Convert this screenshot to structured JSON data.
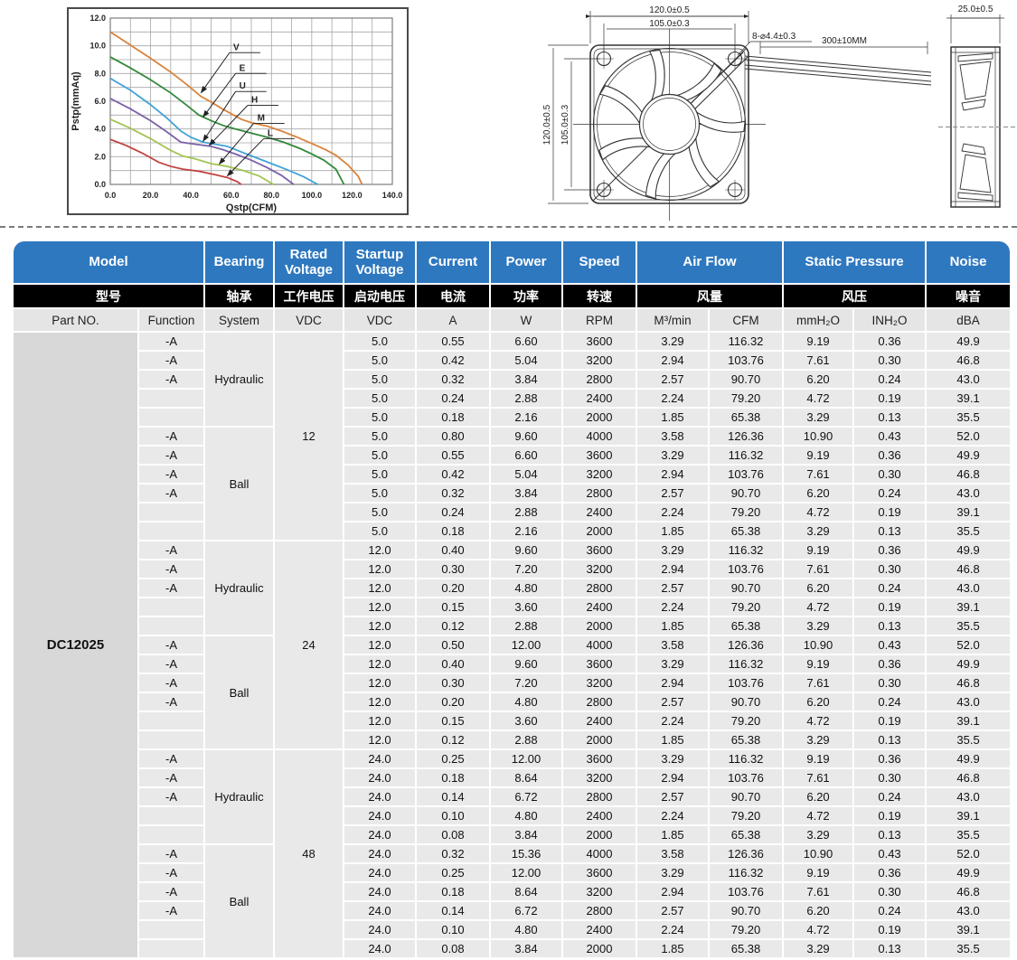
{
  "chart_data": {
    "type": "line",
    "xlabel": "Qstp(CFM)",
    "ylabel": "Pstp(mmAq)",
    "xlim": [
      0,
      140
    ],
    "ylim": [
      0,
      12
    ],
    "xticks": [
      "0.0",
      "20.0",
      "40.0",
      "60.0",
      "80.0",
      "100.0",
      "120.0",
      "140.0"
    ],
    "yticks": [
      "0.0",
      "2.0",
      "4.0",
      "6.0",
      "8.0",
      "10.0",
      "12.0"
    ],
    "grid": "on",
    "grid_minor_x": 10,
    "grid_minor_y": 1,
    "series": [
      {
        "name": "V",
        "color": "#d9823a",
        "label_at": [
          61,
          9.7
        ],
        "arrow_to": [
          45,
          6.6
        ],
        "points": [
          [
            0,
            11.0
          ],
          [
            10,
            10.05
          ],
          [
            20,
            9.1
          ],
          [
            30,
            8.1
          ],
          [
            38,
            7.2
          ],
          [
            45,
            6.35
          ],
          [
            50,
            5.95
          ],
          [
            55,
            5.5
          ],
          [
            60,
            5.1
          ],
          [
            65,
            4.7
          ],
          [
            70,
            4.45
          ],
          [
            78,
            4.2
          ],
          [
            85,
            3.85
          ],
          [
            92,
            3.45
          ],
          [
            100,
            2.95
          ],
          [
            107,
            2.5
          ],
          [
            112,
            2.1
          ],
          [
            118,
            1.4
          ],
          [
            123,
            0.6
          ],
          [
            125,
            0
          ]
        ]
      },
      {
        "name": "E",
        "color": "#35893a",
        "label_at": [
          64,
          8.2
        ],
        "arrow_to": [
          46,
          4.85
        ],
        "points": [
          [
            0,
            9.2
          ],
          [
            10,
            8.4
          ],
          [
            20,
            7.55
          ],
          [
            30,
            6.6
          ],
          [
            38,
            5.7
          ],
          [
            44,
            5.0
          ],
          [
            50,
            4.6
          ],
          [
            56,
            4.25
          ],
          [
            62,
            4.0
          ],
          [
            70,
            3.7
          ],
          [
            78,
            3.4
          ],
          [
            86,
            3.05
          ],
          [
            94,
            2.6
          ],
          [
            100,
            2.2
          ],
          [
            106,
            1.75
          ],
          [
            112,
            1.1
          ],
          [
            116,
            0
          ]
        ]
      },
      {
        "name": "U",
        "color": "#41a2d8",
        "label_at": [
          64,
          6.9
        ],
        "arrow_to": [
          46,
          3.1
        ],
        "points": [
          [
            0,
            7.65
          ],
          [
            10,
            6.8
          ],
          [
            20,
            5.75
          ],
          [
            28,
            4.8
          ],
          [
            35,
            3.85
          ],
          [
            40,
            3.4
          ],
          [
            46,
            3.05
          ],
          [
            52,
            2.9
          ],
          [
            58,
            2.75
          ],
          [
            64,
            2.4
          ],
          [
            72,
            1.95
          ],
          [
            80,
            1.5
          ],
          [
            88,
            1.05
          ],
          [
            96,
            0.55
          ],
          [
            103,
            0
          ]
        ]
      },
      {
        "name": "H",
        "color": "#7a61a9",
        "label_at": [
          70,
          5.9
        ],
        "arrow_to": [
          49,
          2.8
        ],
        "points": [
          [
            0,
            6.2
          ],
          [
            10,
            5.45
          ],
          [
            20,
            4.6
          ],
          [
            28,
            3.8
          ],
          [
            35,
            3.05
          ],
          [
            42,
            2.9
          ],
          [
            50,
            2.75
          ],
          [
            56,
            2.5
          ],
          [
            62,
            2.2
          ],
          [
            70,
            1.75
          ],
          [
            78,
            1.2
          ],
          [
            85,
            0.65
          ],
          [
            91,
            0
          ]
        ]
      },
      {
        "name": "M",
        "color": "#a2c454",
        "label_at": [
          73,
          4.6
        ],
        "arrow_to": [
          54,
          1.45
        ],
        "points": [
          [
            0,
            4.7
          ],
          [
            10,
            4.05
          ],
          [
            20,
            3.3
          ],
          [
            30,
            2.45
          ],
          [
            36,
            2.05
          ],
          [
            42,
            1.85
          ],
          [
            50,
            1.5
          ],
          [
            58,
            1.3
          ],
          [
            66,
            1.0
          ],
          [
            74,
            0.6
          ],
          [
            81,
            0
          ]
        ]
      },
      {
        "name": "L",
        "color": "#c24341",
        "label_at": [
          78,
          3.5
        ],
        "arrow_to": [
          58,
          0.6
        ],
        "points": [
          [
            0,
            3.25
          ],
          [
            8,
            2.8
          ],
          [
            16,
            2.25
          ],
          [
            24,
            1.6
          ],
          [
            30,
            1.3
          ],
          [
            36,
            1.1
          ],
          [
            44,
            0.95
          ],
          [
            52,
            0.7
          ],
          [
            58,
            0.5
          ],
          [
            63,
            0.2
          ],
          [
            65,
            0
          ]
        ]
      }
    ]
  },
  "drawings": {
    "front_view": {
      "width_dim": "120.0±0.5",
      "hole_pitch_dim": "105.0±0.3",
      "height_dim": "120.0±0.5",
      "hole_pitch_v_dim": "105.0±0.3",
      "hole_callout": "8-⌀4.4±0.3",
      "lead_length": "300±10MM"
    },
    "side_view": {
      "thickness_dim": "25.0±0.5"
    }
  },
  "table": {
    "header_en": {
      "model": "Model",
      "bearing": "Bearing",
      "rated_voltage": "Rated Voltage",
      "startup_voltage": "Startup Voltage",
      "current": "Current",
      "power": "Power",
      "speed": "Speed",
      "air_flow": "Air Flow",
      "static_pressure": "Static Pressure",
      "noise": "Noise"
    },
    "header_cn": {
      "model": "型号",
      "bearing": "轴承",
      "rated_voltage": "工作电压",
      "startup_voltage": "启动电压",
      "current": "电流",
      "power": "功率",
      "speed": "转速",
      "air_flow": "风量",
      "static_pressure": "风压",
      "noise": "噪音"
    },
    "units": {
      "part_no": "Part NO.",
      "function": "Function",
      "system": "System",
      "vdc_rated": "VDC",
      "vdc_startup": "VDC",
      "a": "A",
      "w": "W",
      "rpm": "RPM",
      "m3min": "M³/min",
      "cfm": "CFM",
      "mmh2o": "mmH₂O",
      "inh2o": "INH₂O",
      "dba": "dBA"
    },
    "part_no": "DC12025",
    "groups": [
      {
        "rated_voltage": "12",
        "sections": [
          {
            "system": "Hydraulic",
            "rows": [
              [
                "-A",
                "5.0",
                "0.55",
                "6.60",
                "3600",
                "3.29",
                "116.32",
                "9.19",
                "0.36",
                "49.9"
              ],
              [
                "-A",
                "5.0",
                "0.42",
                "5.04",
                "3200",
                "2.94",
                "103.76",
                "7.61",
                "0.30",
                "46.8"
              ],
              [
                "-A",
                "5.0",
                "0.32",
                "3.84",
                "2800",
                "2.57",
                "90.70",
                "6.20",
                "0.24",
                "43.0"
              ],
              [
                "",
                "5.0",
                "0.24",
                "2.88",
                "2400",
                "2.24",
                "79.20",
                "4.72",
                "0.19",
                "39.1"
              ],
              [
                "",
                "5.0",
                "0.18",
                "2.16",
                "2000",
                "1.85",
                "65.38",
                "3.29",
                "0.13",
                "35.5"
              ]
            ]
          },
          {
            "system": "Ball",
            "rows": [
              [
                "-A",
                "5.0",
                "0.80",
                "9.60",
                "4000",
                "3.58",
                "126.36",
                "10.90",
                "0.43",
                "52.0"
              ],
              [
                "-A",
                "5.0",
                "0.55",
                "6.60",
                "3600",
                "3.29",
                "116.32",
                "9.19",
                "0.36",
                "49.9"
              ],
              [
                "-A",
                "5.0",
                "0.42",
                "5.04",
                "3200",
                "2.94",
                "103.76",
                "7.61",
                "0.30",
                "46.8"
              ],
              [
                "-A",
                "5.0",
                "0.32",
                "3.84",
                "2800",
                "2.57",
                "90.70",
                "6.20",
                "0.24",
                "43.0"
              ],
              [
                "",
                "5.0",
                "0.24",
                "2.88",
                "2400",
                "2.24",
                "79.20",
                "4.72",
                "0.19",
                "39.1"
              ],
              [
                "",
                "5.0",
                "0.18",
                "2.16",
                "2000",
                "1.85",
                "65.38",
                "3.29",
                "0.13",
                "35.5"
              ]
            ]
          }
        ]
      },
      {
        "rated_voltage": "24",
        "sections": [
          {
            "system": "Hydraulic",
            "rows": [
              [
                "-A",
                "12.0",
                "0.40",
                "9.60",
                "3600",
                "3.29",
                "116.32",
                "9.19",
                "0.36",
                "49.9"
              ],
              [
                "-A",
                "12.0",
                "0.30",
                "7.20",
                "3200",
                "2.94",
                "103.76",
                "7.61",
                "0.30",
                "46.8"
              ],
              [
                "-A",
                "12.0",
                "0.20",
                "4.80",
                "2800",
                "2.57",
                "90.70",
                "6.20",
                "0.24",
                "43.0"
              ],
              [
                "",
                "12.0",
                "0.15",
                "3.60",
                "2400",
                "2.24",
                "79.20",
                "4.72",
                "0.19",
                "39.1"
              ],
              [
                "",
                "12.0",
                "0.12",
                "2.88",
                "2000",
                "1.85",
                "65.38",
                "3.29",
                "0.13",
                "35.5"
              ]
            ]
          },
          {
            "system": "Ball",
            "rows": [
              [
                "-A",
                "12.0",
                "0.50",
                "12.00",
                "4000",
                "3.58",
                "126.36",
                "10.90",
                "0.43",
                "52.0"
              ],
              [
                "-A",
                "12.0",
                "0.40",
                "9.60",
                "3600",
                "3.29",
                "116.32",
                "9.19",
                "0.36",
                "49.9"
              ],
              [
                "-A",
                "12.0",
                "0.30",
                "7.20",
                "3200",
                "2.94",
                "103.76",
                "7.61",
                "0.30",
                "46.8"
              ],
              [
                "-A",
                "12.0",
                "0.20",
                "4.80",
                "2800",
                "2.57",
                "90.70",
                "6.20",
                "0.24",
                "43.0"
              ],
              [
                "",
                "12.0",
                "0.15",
                "3.60",
                "2400",
                "2.24",
                "79.20",
                "4.72",
                "0.19",
                "39.1"
              ],
              [
                "",
                "12.0",
                "0.12",
                "2.88",
                "2000",
                "1.85",
                "65.38",
                "3.29",
                "0.13",
                "35.5"
              ]
            ]
          }
        ]
      },
      {
        "rated_voltage": "48",
        "sections": [
          {
            "system": "Hydraulic",
            "rows": [
              [
                "-A",
                "24.0",
                "0.25",
                "12.00",
                "3600",
                "3.29",
                "116.32",
                "9.19",
                "0.36",
                "49.9"
              ],
              [
                "-A",
                "24.0",
                "0.18",
                "8.64",
                "3200",
                "2.94",
                "103.76",
                "7.61",
                "0.30",
                "46.8"
              ],
              [
                "-A",
                "24.0",
                "0.14",
                "6.72",
                "2800",
                "2.57",
                "90.70",
                "6.20",
                "0.24",
                "43.0"
              ],
              [
                "",
                "24.0",
                "0.10",
                "4.80",
                "2400",
                "2.24",
                "79.20",
                "4.72",
                "0.19",
                "39.1"
              ],
              [
                "",
                "24.0",
                "0.08",
                "3.84",
                "2000",
                "1.85",
                "65.38",
                "3.29",
                "0.13",
                "35.5"
              ]
            ]
          },
          {
            "system": "Ball",
            "rows": [
              [
                "-A",
                "24.0",
                "0.32",
                "15.36",
                "4000",
                "3.58",
                "126.36",
                "10.90",
                "0.43",
                "52.0"
              ],
              [
                "-A",
                "24.0",
                "0.25",
                "12.00",
                "3600",
                "3.29",
                "116.32",
                "9.19",
                "0.36",
                "49.9"
              ],
              [
                "-A",
                "24.0",
                "0.18",
                "8.64",
                "3200",
                "2.94",
                "103.76",
                "7.61",
                "0.30",
                "46.8"
              ],
              [
                "-A",
                "24.0",
                "0.14",
                "6.72",
                "2800",
                "2.57",
                "90.70",
                "6.20",
                "0.24",
                "43.0"
              ],
              [
                "",
                "24.0",
                "0.10",
                "4.80",
                "2400",
                "2.24",
                "79.20",
                "4.72",
                "0.19",
                "39.1"
              ],
              [
                "",
                "24.0",
                "0.08",
                "3.84",
                "2000",
                "1.85",
                "65.38",
                "3.29",
                "0.13",
                "35.5"
              ]
            ]
          }
        ]
      }
    ]
  }
}
